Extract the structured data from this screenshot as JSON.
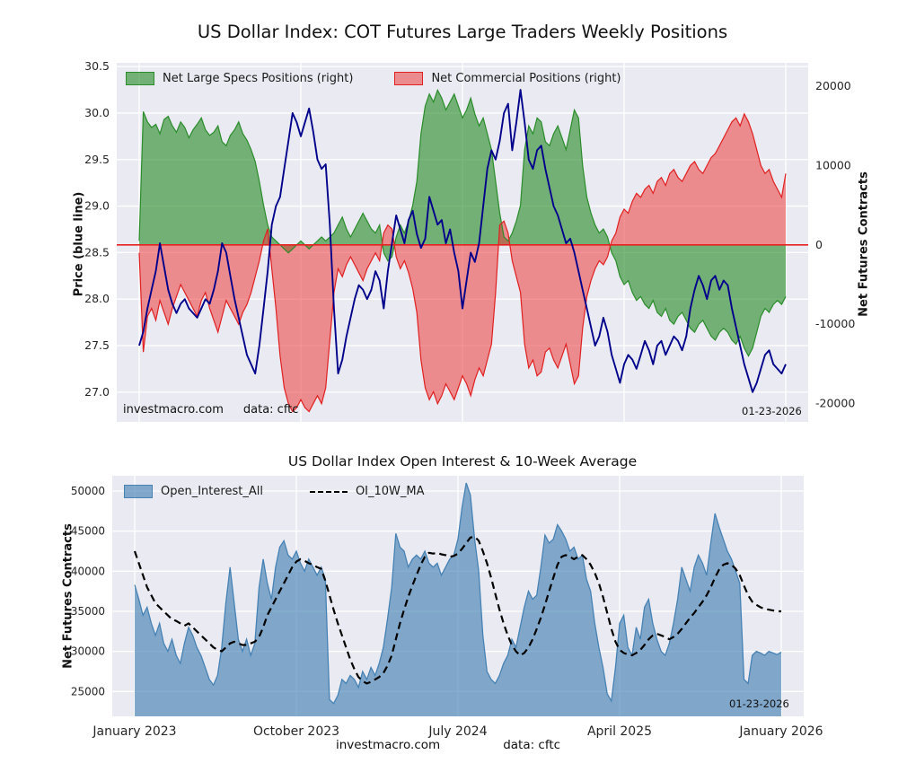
{
  "figure_title": "US Dollar Index: COT Futures Large Traders Weekly Positions",
  "footer": {
    "source": "investmacro.com",
    "data": "data: cftc"
  },
  "chart_data": [
    {
      "type": "area+line",
      "title": "US Dollar Index: COT Futures Large Traders Weekly Positions",
      "ylabel_left": "Price (blue line)",
      "ylabel_right": "Net Futures Contracts",
      "ylim_left": [
        26.68,
        30.54
      ],
      "ylim_right": [
        -22300,
        22940
      ],
      "yticks_left": [
        27.0,
        27.5,
        28.0,
        28.5,
        29.0,
        29.5,
        30.0,
        30.5
      ],
      "yticks_right": [
        -20000,
        -10000,
        0,
        10000,
        20000
      ],
      "zero_line_color": "#e82020",
      "grid": true,
      "legend_position": "top-left",
      "annotations": {
        "source": "investmacro.com",
        "data": "data: cftc",
        "date": "01-23-2026"
      },
      "x": {
        "points": 157,
        "freq": "weekly",
        "start": "January 2023",
        "end": "January 2026"
      },
      "xticks": {
        "weeks": [
          0,
          39,
          78,
          117,
          156
        ],
        "labels": [
          "",
          "",
          "",
          "",
          ""
        ]
      },
      "series": [
        {
          "name": "Net Large Specs Positions (right)",
          "axis": "right",
          "style": "area",
          "color": "#2a8c2a",
          "fill": "rgba(40,140,40,0.62)",
          "values": [
            500,
            16800,
            15500,
            14800,
            15200,
            14000,
            15800,
            16200,
            15000,
            14200,
            15500,
            14800,
            13500,
            14500,
            15200,
            16000,
            14500,
            13800,
            14200,
            15000,
            13000,
            12500,
            13800,
            14500,
            15500,
            14000,
            13200,
            12000,
            10500,
            8000,
            5000,
            2500,
            1000,
            500,
            0,
            -500,
            -1000,
            -500,
            0,
            500,
            0,
            -500,
            0,
            500,
            1000,
            500,
            1000,
            1500,
            2500,
            3500,
            2000,
            1000,
            2000,
            3000,
            4000,
            3000,
            2000,
            1500,
            2500,
            -1000,
            -2000,
            -1500,
            1000,
            2500,
            1500,
            3000,
            5000,
            8000,
            14000,
            17500,
            19000,
            18000,
            19500,
            18500,
            17000,
            18000,
            19000,
            17500,
            16000,
            17000,
            18500,
            16500,
            15000,
            16000,
            14000,
            12000,
            8000,
            4000,
            1000,
            500,
            1500,
            3000,
            5000,
            12000,
            15000,
            14000,
            16000,
            15500,
            13000,
            12500,
            14000,
            15000,
            13500,
            12000,
            14500,
            17000,
            16000,
            10000,
            6000,
            4000,
            2500,
            1500,
            2000,
            1000,
            -1000,
            -2000,
            -4000,
            -5000,
            -4500,
            -6000,
            -7000,
            -6500,
            -7500,
            -8000,
            -7000,
            -8500,
            -9000,
            -8000,
            -9500,
            -10000,
            -9000,
            -8500,
            -9500,
            -10500,
            -11000,
            -10000,
            -9500,
            -10500,
            -11500,
            -12000,
            -11000,
            -10500,
            -11000,
            -12000,
            -12500,
            -11500,
            -13000,
            -14000,
            -13000,
            -11000,
            -9000,
            -8000,
            -8500,
            -7500,
            -7000,
            -7500,
            -6500
          ]
        },
        {
          "name": "Net Commercial Positions (right)",
          "axis": "right",
          "style": "area",
          "color": "#e02020",
          "fill": "rgba(235,60,60,0.55)",
          "values": [
            -1000,
            -13500,
            -9000,
            -8000,
            -9500,
            -7000,
            -8500,
            -10000,
            -8000,
            -6500,
            -5000,
            -6000,
            -7000,
            -8000,
            -9000,
            -7000,
            -6000,
            -8000,
            -9500,
            -11000,
            -9000,
            -7000,
            -8000,
            -9000,
            -10000,
            -8500,
            -7500,
            -6000,
            -4000,
            -2000,
            500,
            2000,
            -3000,
            -8000,
            -14000,
            -18000,
            -20000,
            -21000,
            -20500,
            -19500,
            -20500,
            -21000,
            -20000,
            -19000,
            -20000,
            -18000,
            -12000,
            -6000,
            -3000,
            -4000,
            -2500,
            -1500,
            -2500,
            -3500,
            -4500,
            -3000,
            -2000,
            -1000,
            -2000,
            1500,
            2500,
            2000,
            -1500,
            -3000,
            -2000,
            -3500,
            -5500,
            -8500,
            -14500,
            -18000,
            -19500,
            -18500,
            -20000,
            -19000,
            -17500,
            -18500,
            -19500,
            -18000,
            -16500,
            -17500,
            -19000,
            -17000,
            -15500,
            -16500,
            -14500,
            -12500,
            -6000,
            2500,
            3000,
            1500,
            -2000,
            -4000,
            -6000,
            -12500,
            -15500,
            -14500,
            -16500,
            -16000,
            -13500,
            -13000,
            -14500,
            -15500,
            -14000,
            -12500,
            -15000,
            -17500,
            -16500,
            -10500,
            -6500,
            -4500,
            -3000,
            -2000,
            -2500,
            -1500,
            500,
            1500,
            3500,
            4500,
            4000,
            5500,
            6500,
            6000,
            7000,
            7500,
            6500,
            8000,
            8500,
            7500,
            9000,
            9500,
            8500,
            8000,
            9000,
            10000,
            10500,
            9500,
            9000,
            10000,
            11000,
            11500,
            12500,
            13500,
            14500,
            15500,
            16000,
            15000,
            16500,
            15500,
            14000,
            12000,
            10000,
            9000,
            9500,
            8000,
            7000,
            6000,
            9000
          ]
        },
        {
          "name": "Price",
          "axis": "left",
          "style": "line",
          "color": "#00008b",
          "values": [
            27.5,
            27.65,
            27.9,
            28.1,
            28.3,
            28.6,
            28.35,
            28.1,
            27.95,
            27.85,
            27.95,
            28.0,
            27.9,
            27.85,
            27.8,
            27.9,
            28.0,
            27.95,
            28.1,
            28.3,
            28.6,
            28.5,
            28.25,
            28.0,
            27.8,
            27.6,
            27.4,
            27.3,
            27.2,
            27.5,
            27.9,
            28.3,
            28.8,
            29.0,
            29.1,
            29.4,
            29.7,
            30.0,
            29.9,
            29.75,
            29.9,
            30.05,
            29.8,
            29.5,
            29.4,
            29.45,
            28.8,
            27.9,
            27.2,
            27.35,
            27.6,
            27.8,
            28.0,
            28.15,
            28.1,
            28.0,
            28.1,
            28.3,
            28.2,
            27.9,
            28.3,
            28.6,
            28.9,
            28.75,
            28.6,
            28.85,
            28.95,
            28.7,
            28.55,
            28.65,
            29.1,
            28.95,
            28.8,
            28.85,
            28.6,
            28.75,
            28.5,
            28.3,
            27.9,
            28.2,
            28.5,
            28.4,
            28.6,
            29.0,
            29.4,
            29.6,
            29.5,
            29.7,
            30.0,
            30.1,
            29.6,
            29.9,
            30.25,
            29.9,
            29.5,
            29.4,
            29.6,
            29.65,
            29.4,
            29.2,
            29.0,
            28.9,
            28.75,
            28.6,
            28.65,
            28.5,
            28.3,
            28.1,
            27.9,
            27.7,
            27.5,
            27.6,
            27.8,
            27.65,
            27.4,
            27.25,
            27.1,
            27.3,
            27.4,
            27.35,
            27.25,
            27.4,
            27.55,
            27.45,
            27.3,
            27.5,
            27.55,
            27.4,
            27.5,
            27.6,
            27.55,
            27.45,
            27.6,
            27.9,
            28.1,
            28.25,
            28.15,
            28.0,
            28.2,
            28.25,
            28.1,
            28.2,
            28.15,
            27.9,
            27.7,
            27.5,
            27.3,
            27.15,
            27.0,
            27.1,
            27.25,
            27.4,
            27.45,
            27.3,
            27.25,
            27.2,
            27.3
          ]
        }
      ]
    },
    {
      "type": "area+line",
      "title": "US Dollar Index Open Interest & 10-Week Average",
      "ylabel_left": "Net Futures Contracts",
      "ylim": [
        21900,
        51900
      ],
      "yticks": [
        25000,
        30000,
        35000,
        40000,
        45000,
        50000
      ],
      "grid": true,
      "legend_position": "top-left",
      "annotations": {
        "date": "01-23-2026"
      },
      "x": {
        "points": 157,
        "freq": "weekly",
        "start": "January 2023",
        "end": "January 2026"
      },
      "xticks": {
        "weeks": [
          0,
          39,
          78,
          117,
          156
        ],
        "labels": [
          "January 2023",
          "October 2023",
          "July 2024",
          "April 2025",
          "January 2026"
        ]
      },
      "series": [
        {
          "name": "Open_Interest_All",
          "style": "area",
          "color": "#4682b4",
          "fill": "rgba(70,130,180,0.65)",
          "values": [
            38300,
            36500,
            34500,
            35500,
            33500,
            32000,
            33500,
            31000,
            30000,
            31500,
            29500,
            28500,
            31000,
            33000,
            32000,
            30500,
            29500,
            28000,
            26500,
            25800,
            27000,
            30500,
            36000,
            40500,
            36000,
            31500,
            30000,
            31500,
            29500,
            31000,
            38000,
            41500,
            38500,
            36500,
            40500,
            43000,
            43800,
            42000,
            41500,
            42500,
            41000,
            40000,
            41500,
            40500,
            39500,
            40500,
            39000,
            24000,
            23500,
            24500,
            26500,
            26000,
            27000,
            26500,
            25500,
            27500,
            26500,
            28000,
            27000,
            28500,
            30500,
            34000,
            38000,
            44700,
            43000,
            42500,
            40500,
            41500,
            42000,
            41500,
            42500,
            41000,
            40500,
            41000,
            39500,
            40500,
            41500,
            42000,
            44000,
            48000,
            51000,
            49500,
            44000,
            40000,
            32000,
            27500,
            26500,
            26000,
            27000,
            28500,
            29500,
            31500,
            30500,
            33000,
            35500,
            37500,
            36500,
            37000,
            40500,
            44500,
            43500,
            44000,
            45800,
            45000,
            44000,
            42500,
            43000,
            41500,
            42000,
            39000,
            37500,
            33500,
            30500,
            28000,
            24700,
            23800,
            28000,
            33500,
            34500,
            30500,
            29500,
            33000,
            31500,
            35500,
            36500,
            33500,
            31500,
            30000,
            29500,
            31000,
            33500,
            36500,
            40500,
            39000,
            37500,
            40500,
            42000,
            41000,
            39500,
            43500,
            47200,
            45500,
            44000,
            42500,
            41500,
            40000,
            38500,
            26500,
            26000,
            29500,
            30000,
            29800,
            29500,
            30000,
            29800,
            29600,
            29900
          ]
        },
        {
          "name": "OI_10W_MA",
          "style": "dashed-line",
          "color": "#000000",
          "values": [
            42500,
            41000,
            39500,
            38000,
            37000,
            36000,
            35500,
            35000,
            34500,
            34000,
            33800,
            33500,
            33200,
            33500,
            33000,
            32500,
            32000,
            31500,
            31000,
            30500,
            30200,
            30000,
            30500,
            31000,
            31200,
            31000,
            30800,
            30800,
            31000,
            31200,
            31800,
            33000,
            34500,
            35500,
            36500,
            37500,
            38500,
            39500,
            40500,
            41200,
            41500,
            41300,
            41000,
            40800,
            40500,
            40300,
            38800,
            37000,
            35200,
            33500,
            32000,
            30500,
            29000,
            27800,
            26800,
            26300,
            26000,
            26200,
            26500,
            26800,
            27300,
            28200,
            29500,
            31500,
            33500,
            35200,
            36800,
            38200,
            39500,
            40800,
            41800,
            42300,
            42200,
            42300,
            42100,
            42000,
            41800,
            41900,
            42200,
            42800,
            43500,
            44200,
            44300,
            43800,
            42500,
            41000,
            39200,
            37200,
            35200,
            33500,
            32000,
            30800,
            30000,
            29500,
            29800,
            30500,
            31500,
            32800,
            34200,
            35800,
            37500,
            39200,
            40800,
            41800,
            42000,
            41800,
            41500,
            41800,
            42000,
            41500,
            40800,
            39800,
            38500,
            36800,
            34800,
            32800,
            31200,
            30200,
            29800,
            29600,
            29500,
            29800,
            30200,
            30800,
            31500,
            32000,
            32200,
            32000,
            31800,
            31500,
            31800,
            32200,
            32800,
            33500,
            34200,
            34800,
            35500,
            36200,
            37000,
            38000,
            39200,
            40200,
            40800,
            41000,
            40800,
            40300,
            39500,
            38200,
            37000,
            36200,
            35800,
            35500,
            35300,
            35200,
            35100,
            35000,
            35000
          ]
        }
      ]
    }
  ]
}
